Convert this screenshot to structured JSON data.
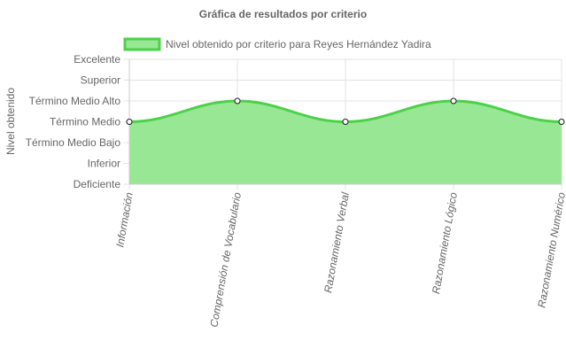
{
  "chart_data": {
    "type": "area",
    "title": "Gráfica de resultados por criterio",
    "xlabel": "",
    "ylabel": "Nivel obtenido",
    "y_levels": [
      "Deficiente",
      "Inferior",
      "Término Medio Bajo",
      "Término Medio",
      "Término Medio Alto",
      "Superior",
      "Excelente"
    ],
    "ylim": [
      0,
      6
    ],
    "categories": [
      "Información",
      "Comprensión de Vocabulario",
      "Razonamiento Verbal",
      "Razonamiento Lógico",
      "Razonamiento Numérico"
    ],
    "series": [
      {
        "name": "Nivel obtenido por criterio para Reyes Hernández Yadira",
        "values": [
          3,
          4,
          3,
          4,
          3
        ],
        "labels": [
          "Término Medio",
          "Término Medio Alto",
          "Término Medio",
          "Término Medio Alto",
          "Término Medio"
        ]
      }
    ],
    "colors": {
      "fill": "#97e795",
      "stroke": "#4cd148",
      "point_fill": "#ffffff",
      "point_stroke": "#1a1a1a",
      "grid": "#e3e3e3",
      "axis": "#666666"
    },
    "grid": true,
    "legend_position": "top-left"
  }
}
